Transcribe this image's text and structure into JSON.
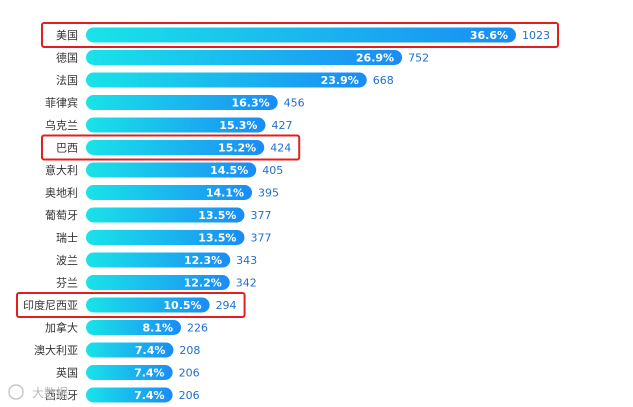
{
  "chart_data": {
    "type": "bar",
    "orientation": "horizontal",
    "categories": [
      "美国",
      "德国",
      "法国",
      "菲律宾",
      "乌克兰",
      "巴西",
      "意大利",
      "奥地利",
      "葡萄牙",
      "瑞士",
      "波兰",
      "芬兰",
      "印度尼西亚",
      "加拿大",
      "澳大利亚",
      "英国",
      "西班牙"
    ],
    "values": [
      1023,
      752,
      668,
      456,
      427,
      424,
      405,
      395,
      377,
      377,
      343,
      342,
      294,
      226,
      208,
      206,
      206
    ],
    "percentages": [
      "36.6%",
      "26.9%",
      "23.9%",
      "16.3%",
      "15.3%",
      "15.2%",
      "14.5%",
      "14.1%",
      "13.5%",
      "13.5%",
      "12.3%",
      "12.2%",
      "10.5%",
      "8.1%",
      "7.4%",
      "7.4%",
      "7.4%"
    ],
    "highlighted": [
      "美国",
      "巴西",
      "印度尼西亚"
    ],
    "xlim": [
      0,
      1023
    ],
    "grid": false,
    "colors": {
      "bar_start": "#19e3e8",
      "bar_end": "#1a8cf5",
      "highlight": "#e02020",
      "value_text": "#1f6fd1"
    }
  },
  "watermark": {
    "text": "大数据"
  }
}
